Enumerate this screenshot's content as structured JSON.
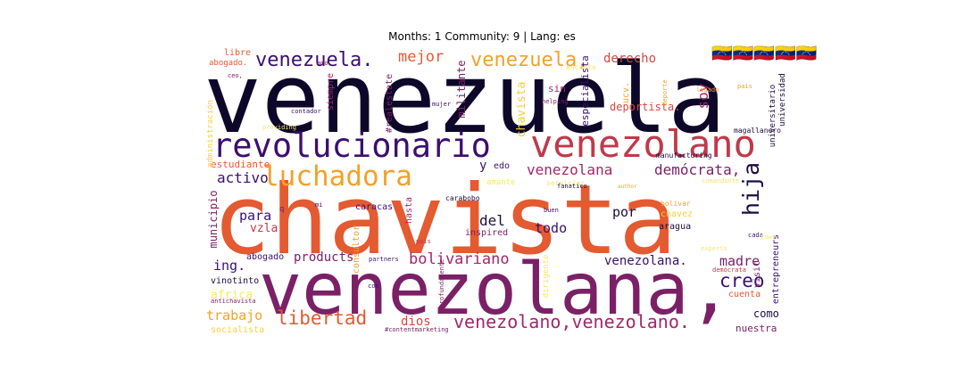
{
  "chart_data": {
    "type": "wordcloud",
    "title": "Months: 1 Community: 9 | Lang: es",
    "colormap": "inferno",
    "colors": {
      "orange": "#e45a31",
      "plum": "#7b2067",
      "black": "#0d0829",
      "indigo": "#3b0f70",
      "rose": "#c0394a",
      "amber": "#f2a12a",
      "yellow": "#f7d03c",
      "pale": "#f6e66a",
      "magenta": "#a3266b",
      "red": "#d44842",
      "dark": "#1b0c41"
    },
    "words": [
      {
        "text": "venezuela",
        "color": "black"
      },
      {
        "text": "chavista",
        "color": "orange"
      },
      {
        "text": "venezolana,",
        "color": "plum"
      },
      {
        "text": "venezolano",
        "color": "rose"
      },
      {
        "text": "revolucionario",
        "color": "indigo"
      },
      {
        "text": "luchadora",
        "color": "amber"
      },
      {
        "text": "venezuela.",
        "color": "indigo"
      },
      {
        "text": "venezuela,",
        "color": "amber"
      },
      {
        "text": "mejor",
        "color": "orange"
      },
      {
        "text": "derecho",
        "color": "red"
      },
      {
        "text": "🇻🇪🇻🇪🇻🇪🇻🇪🇻🇪",
        "color": "red"
      },
      {
        "text": "hija",
        "color": "dark"
      },
      {
        "text": "venezolano,venezolano.",
        "color": "magenta"
      },
      {
        "text": "libertad",
        "color": "orange"
      },
      {
        "text": "creo",
        "color": "indigo"
      },
      {
        "text": "bolivariano",
        "color": "magenta"
      },
      {
        "text": "venezolana",
        "color": "magenta"
      },
      {
        "text": "demócrata,",
        "color": "plum"
      },
      {
        "text": "activo",
        "color": "indigo"
      },
      {
        "text": "para",
        "color": "indigo"
      },
      {
        "text": "del",
        "color": "dark"
      },
      {
        "text": "por",
        "color": "dark"
      },
      {
        "text": "todo",
        "color": "indigo"
      },
      {
        "text": "venezolana.",
        "color": "indigo"
      },
      {
        "text": "madre",
        "color": "plum"
      },
      {
        "text": "trabajo",
        "color": "amber"
      },
      {
        "text": "dios",
        "color": "red"
      },
      {
        "text": "products",
        "color": "plum"
      },
      {
        "text": "ing.",
        "color": "indigo"
      },
      {
        "text": "vzla",
        "color": "rose"
      },
      {
        "text": "soy",
        "color": "magenta"
      },
      {
        "text": "y",
        "color": "indigo"
      },
      {
        "text": "edo",
        "color": "indigo"
      },
      {
        "text": "chavista",
        "color": "yellow"
      },
      {
        "text": "militante",
        "color": "plum"
      },
      {
        "text": "deportista.",
        "color": "red"
      },
      {
        "text": "sin",
        "color": "magenta"
      },
      {
        "text": "especialista",
        "color": "indigo"
      },
      {
        "text": "estudiante",
        "color": "orange"
      },
      {
        "text": "municipio",
        "color": "plum"
      },
      {
        "text": "africa",
        "color": "pale"
      },
      {
        "text": "abogado",
        "color": "indigo"
      },
      {
        "text": "vinotinto",
        "color": "dark"
      },
      {
        "text": "socialista",
        "color": "yellow"
      },
      {
        "text": "como",
        "color": "dark"
      },
      {
        "text": "nuestra",
        "color": "plum"
      },
      {
        "text": "cuenta",
        "color": "orange"
      },
      {
        "text": "entrepreneurs",
        "color": "indigo"
      },
      {
        "text": "visit",
        "color": "plum"
      },
      {
        "text": "aragua",
        "color": "dark"
      },
      {
        "text": "chavez",
        "color": "yellow"
      },
      {
        "text": "caracas",
        "color": "indigo"
      },
      {
        "text": "hasta",
        "color": "magenta"
      },
      {
        "text": "inspired",
        "color": "plum"
      },
      {
        "text": "consultor",
        "color": "amber"
      },
      {
        "text": "q",
        "color": "plum"
      },
      {
        "text": "universidad",
        "color": "dark"
      },
      {
        "text": "universitario",
        "color": "dark"
      },
      {
        "text": "magallanero",
        "color": "dark"
      },
      {
        "text": "manufacturing",
        "color": "dark"
      },
      {
        "text": "libre",
        "color": "orange"
      },
      {
        "text": "abogado.",
        "color": "orange"
      },
      {
        "text": "siempre",
        "color": "magenta"
      },
      {
        "text": "#realestate",
        "color": "plum"
      },
      {
        "text": "administración",
        "color": "yellow"
      },
      {
        "text": "ucv.",
        "color": "amber"
      },
      {
        "text": "encanta",
        "color": "pale"
      },
      {
        "text": "helping",
        "color": "plum"
      },
      {
        "text": "amante",
        "color": "pale"
      },
      {
        "text": "servicios",
        "color": "pale"
      },
      {
        "text": "fanatico",
        "color": "dark"
      },
      {
        "text": "carabobo",
        "color": "dark"
      },
      {
        "text": "comandante",
        "color": "pale"
      },
      {
        "text": "bolivar",
        "color": "amber"
      },
      {
        "text": "buen",
        "color": "indigo"
      },
      {
        "text": "pais",
        "color": "rose"
      },
      {
        "text": "partners",
        "color": "indigo"
      },
      {
        "text": "profundamente",
        "color": "plum"
      },
      {
        "text": "antichavista",
        "color": "plum"
      },
      {
        "text": "con",
        "color": "indigo"
      },
      {
        "text": "#contentmarketing",
        "color": "plum"
      },
      {
        "text": "dirigente",
        "color": "pale"
      },
      {
        "text": "experto",
        "color": "pale"
      },
      {
        "text": "cada",
        "color": "indigo"
      },
      {
        "text": "demócrata",
        "color": "rose"
      },
      {
        "text": "legado",
        "color": "amber"
      },
      {
        "text": "deporte",
        "color": "amber"
      },
      {
        "text": "mujer",
        "color": "indigo"
      },
      {
        "text": "contador",
        "color": "indigo"
      },
      {
        "text": "providing",
        "color": "pale"
      },
      {
        "text": "amo",
        "color": "plum"
      },
      {
        "text": "ceo,",
        "color": "plum"
      },
      {
        "text": "mi",
        "color": "indigo"
      },
      {
        "text": "author",
        "color": "amber"
      },
      {
        "text": "pais",
        "color": "amber"
      },
      {
        "text": "tuwi",
        "color": "pale"
      }
    ]
  }
}
